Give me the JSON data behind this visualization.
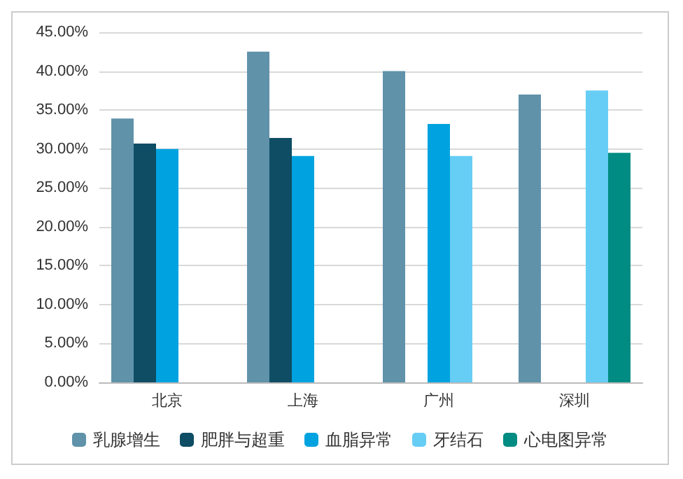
{
  "chart_data": {
    "type": "bar",
    "categories": [
      "北京",
      "上海",
      "广州",
      "深圳"
    ],
    "series": [
      {
        "name": "乳腺增生",
        "color": "#6092aa",
        "values": [
          33.9,
          42.5,
          40.0,
          37.0
        ]
      },
      {
        "name": "肥胖与超重",
        "color": "#0e4d64",
        "values": [
          30.7,
          31.4,
          null,
          null
        ]
      },
      {
        "name": "血脂异常",
        "color": "#00a3e0",
        "values": [
          30.0,
          29.1,
          33.2,
          null
        ]
      },
      {
        "name": "牙结石",
        "color": "#66cdf5",
        "values": [
          null,
          null,
          29.1,
          37.5
        ]
      },
      {
        "name": "心电图异常",
        "color": "#008c82",
        "values": [
          null,
          null,
          null,
          29.5
        ]
      }
    ],
    "ylim": [
      0,
      45
    ],
    "yticks": [
      {
        "value": 0,
        "label": "0.00%"
      },
      {
        "value": 5,
        "label": "5.00%"
      },
      {
        "value": 10,
        "label": "10.00%"
      },
      {
        "value": 15,
        "label": "15.00%"
      },
      {
        "value": 20,
        "label": "20.00%"
      },
      {
        "value": 25,
        "label": "25.00%"
      },
      {
        "value": 30,
        "label": "30.00%"
      },
      {
        "value": 35,
        "label": "35.00%"
      },
      {
        "value": 40,
        "label": "40.00%"
      },
      {
        "value": 45,
        "label": "45.00%"
      }
    ],
    "grid": "y",
    "legend": "bottom"
  }
}
